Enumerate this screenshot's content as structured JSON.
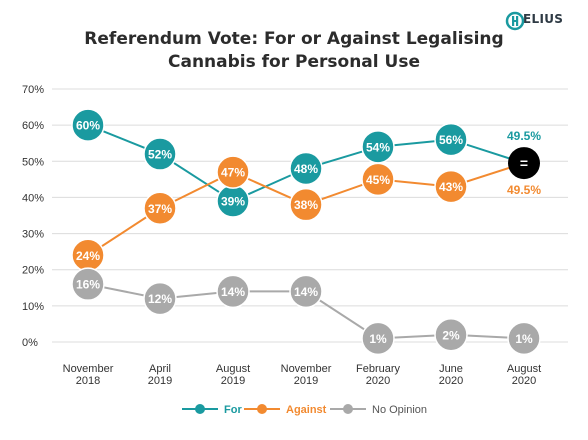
{
  "title": {
    "line1": "Referendum Vote: For or Against Legalising",
    "line2": "Cannabis for Personal Use"
  },
  "logo": {
    "text": "ELIUS",
    "icon": "helius-h-logo-icon",
    "color": "#1a9aa0"
  },
  "colors": {
    "for": "#1a9aa0",
    "against": "#f28a30",
    "no_opinion": "#a9a9a9",
    "tie": "#000000",
    "grid": "#dcdcdc",
    "text": "#333333"
  },
  "chart_data": {
    "type": "line",
    "x_categories": [
      [
        "November",
        "2018"
      ],
      [
        "April",
        "2019"
      ],
      [
        "August",
        "2019"
      ],
      [
        "November",
        "2019"
      ],
      [
        "February",
        "2020"
      ],
      [
        "June",
        "2020"
      ],
      [
        "August",
        "2020"
      ]
    ],
    "y_ticks": [
      "0%",
      "10%",
      "20%",
      "30%",
      "40%",
      "50%",
      "60%",
      "70%"
    ],
    "ylim": [
      0,
      70
    ],
    "grid": true,
    "legend_position": "bottom",
    "series": [
      {
        "name": "For",
        "color_key": "for",
        "values": [
          60,
          52,
          39,
          48,
          54,
          56,
          49.5
        ],
        "labels": [
          "60%",
          "52%",
          "39%",
          "48%",
          "54%",
          "56%",
          "49.5%"
        ]
      },
      {
        "name": "Against",
        "color_key": "against",
        "values": [
          24,
          37,
          47,
          38,
          45,
          43,
          49.5
        ],
        "labels": [
          "24%",
          "37%",
          "47%",
          "38%",
          "45%",
          "43%",
          "49.5%"
        ]
      },
      {
        "name": "No Opinion",
        "color_key": "no_opinion",
        "values": [
          16,
          12,
          14,
          14,
          1,
          2,
          1
        ],
        "labels": [
          "16%",
          "12%",
          "14%",
          "14%",
          "1%",
          "2%",
          "1%"
        ]
      }
    ],
    "tie_marker": {
      "index": 6,
      "label": "="
    }
  }
}
